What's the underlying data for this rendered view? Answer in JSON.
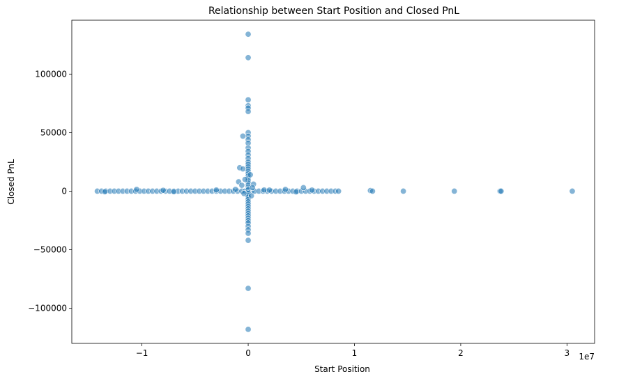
{
  "chart_data": {
    "type": "scatter",
    "title": "Relationship between Start Position and Closed PnL",
    "xlabel": "Start Position",
    "ylabel": "Closed PnL",
    "x_scale_offset_label": "1e7",
    "xlim": [
      -16600000.0,
      32600000.0
    ],
    "ylim": [
      -130000,
      146000
    ],
    "x_ticks": [
      -10000000,
      0,
      10000000,
      20000000,
      30000000
    ],
    "x_tick_labels": [
      "−1",
      "0",
      "1",
      "2",
      "3"
    ],
    "y_ticks": [
      -100000,
      -50000,
      0,
      50000,
      100000
    ],
    "y_tick_labels": [
      "−100000",
      "−50000",
      "0",
      "50000",
      "100000"
    ],
    "grid": false,
    "marker_color": "#1f77b4",
    "marker_alpha": 0.55,
    "points": {
      "horizontal_band": [
        [
          -14200000,
          0
        ],
        [
          -13800000,
          0
        ],
        [
          -13400000,
          0
        ],
        [
          -13000000,
          0
        ],
        [
          -12600000,
          0
        ],
        [
          -12200000,
          0
        ],
        [
          -11800000,
          0
        ],
        [
          -11400000,
          0
        ],
        [
          -11000000,
          0
        ],
        [
          -10600000,
          0
        ],
        [
          -10200000,
          0
        ],
        [
          -9800000,
          0
        ],
        [
          -9400000,
          0
        ],
        [
          -9000000,
          0
        ],
        [
          -8600000,
          0
        ],
        [
          -8200000,
          0
        ],
        [
          -7800000,
          0
        ],
        [
          -7400000,
          0
        ],
        [
          -7000000,
          0
        ],
        [
          -6600000,
          0
        ],
        [
          -6200000,
          0
        ],
        [
          -5800000,
          0
        ],
        [
          -5400000,
          0
        ],
        [
          -5000000,
          0
        ],
        [
          -4600000,
          0
        ],
        [
          -4200000,
          0
        ],
        [
          -3800000,
          0
        ],
        [
          -3400000,
          0
        ],
        [
          -3000000,
          0
        ],
        [
          -2600000,
          0
        ],
        [
          -2200000,
          0
        ],
        [
          -1800000,
          0
        ],
        [
          -1400000,
          0
        ],
        [
          -1000000,
          0
        ],
        [
          -600000,
          0
        ],
        [
          -300000,
          0
        ],
        [
          300000,
          0
        ],
        [
          600000,
          0
        ],
        [
          1000000,
          0
        ],
        [
          1400000,
          0
        ],
        [
          1800000,
          0
        ],
        [
          2200000,
          0
        ],
        [
          2600000,
          0
        ],
        [
          3000000,
          0
        ],
        [
          3400000,
          0
        ],
        [
          3800000,
          0
        ],
        [
          4200000,
          0
        ],
        [
          4600000,
          0
        ],
        [
          5000000,
          0
        ],
        [
          5400000,
          0
        ],
        [
          5800000,
          0
        ],
        [
          6200000,
          0
        ],
        [
          6600000,
          0
        ],
        [
          7000000,
          0
        ],
        [
          7400000,
          0
        ],
        [
          7800000,
          0
        ],
        [
          8200000,
          0
        ],
        [
          8500000,
          0
        ],
        [
          -10500000,
          1500
        ],
        [
          -8000000,
          700
        ],
        [
          -3000000,
          1000
        ],
        [
          -1200000,
          1500
        ],
        [
          1500000,
          1000
        ],
        [
          2000000,
          900
        ],
        [
          3500000,
          1500
        ],
        [
          5200000,
          3000
        ],
        [
          6000000,
          900
        ],
        [
          -13500000,
          -500
        ],
        [
          -7000000,
          -400
        ],
        [
          4500000,
          -600
        ]
      ],
      "vertical_band": [
        [
          0,
          134000
        ],
        [
          0,
          114000
        ],
        [
          0,
          78000
        ],
        [
          0,
          73000
        ],
        [
          0,
          71000
        ],
        [
          0,
          68000
        ],
        [
          0,
          50000
        ],
        [
          0,
          47000
        ],
        [
          0,
          44000
        ],
        [
          0,
          41000
        ],
        [
          0,
          37000
        ],
        [
          0,
          34000
        ],
        [
          0,
          31000
        ],
        [
          0,
          28000
        ],
        [
          0,
          25000
        ],
        [
          0,
          23000
        ],
        [
          0,
          21000
        ],
        [
          0,
          19000
        ],
        [
          0,
          17000
        ],
        [
          0,
          15000
        ],
        [
          0,
          13000
        ],
        [
          0,
          11000
        ],
        [
          0,
          9000
        ],
        [
          0,
          7000
        ],
        [
          0,
          5000
        ],
        [
          0,
          3500
        ],
        [
          0,
          2000
        ],
        [
          0,
          1000
        ],
        [
          0,
          -1000
        ],
        [
          0,
          -2000
        ],
        [
          0,
          -3500
        ],
        [
          0,
          -5000
        ],
        [
          0,
          -7000
        ],
        [
          0,
          -9000
        ],
        [
          0,
          -11000
        ],
        [
          0,
          -13000
        ],
        [
          0,
          -15000
        ],
        [
          0,
          -17000
        ],
        [
          0,
          -19000
        ],
        [
          0,
          -21000
        ],
        [
          0,
          -23000
        ],
        [
          0,
          -25000
        ],
        [
          0,
          -27000
        ],
        [
          0,
          -30000
        ],
        [
          0,
          -33000
        ],
        [
          0,
          -36000
        ],
        [
          0,
          -42000
        ],
        [
          0,
          -83000
        ],
        [
          0,
          -118000
        ],
        [
          -500000,
          47000
        ],
        [
          -800000,
          20000
        ],
        [
          -500000,
          19000
        ],
        [
          -900000,
          8000
        ],
        [
          -600000,
          5000
        ],
        [
          500000,
          6000
        ],
        [
          400000,
          3000
        ],
        [
          -400000,
          -2000
        ],
        [
          300000,
          -4000
        ],
        [
          -300000,
          10000
        ],
        [
          200000,
          14000
        ]
      ],
      "outliers": [
        [
          11500000,
          500
        ],
        [
          11700000,
          0
        ],
        [
          14600000,
          0
        ],
        [
          19400000,
          0
        ],
        [
          23700000,
          0
        ],
        [
          23800000,
          0
        ],
        [
          30500000,
          0
        ]
      ]
    }
  }
}
